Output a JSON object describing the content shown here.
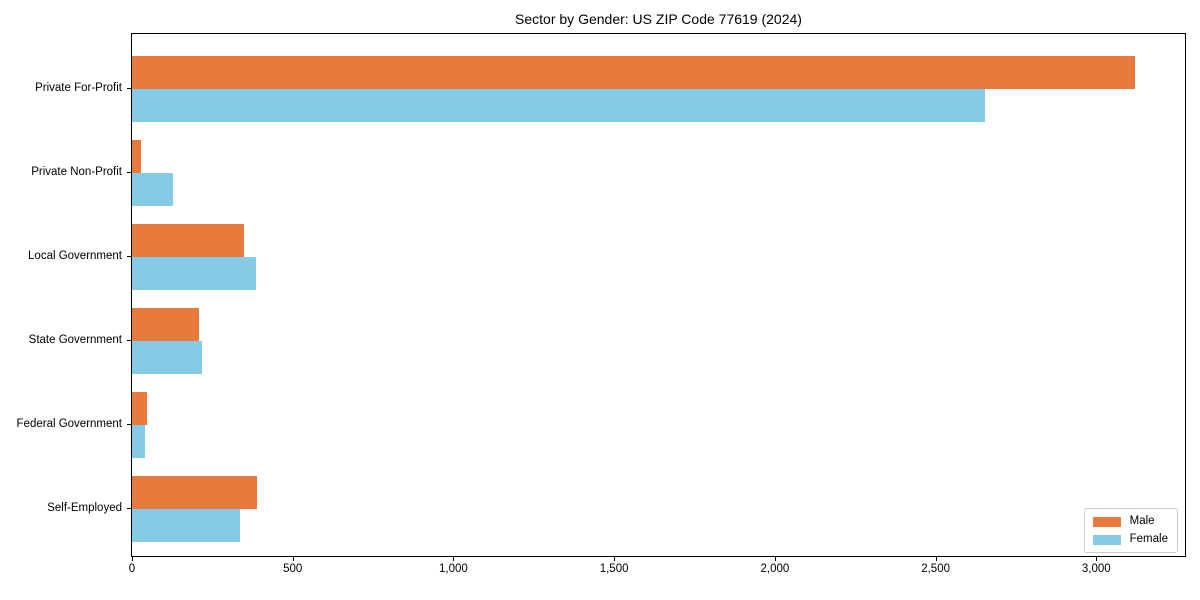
{
  "figure": {
    "title": "Sector by Gender: US ZIP Code 77619 (2024)"
  },
  "chart_data": {
    "type": "bar",
    "orientation": "horizontal",
    "title": "Sector by Gender: US ZIP Code 77619 (2024)",
    "categories": [
      "Private For-Profit",
      "Private Non-Profit",
      "Local Government",
      "State Government",
      "Federal Government",
      "Self-Employed"
    ],
    "series": [
      {
        "name": "Male",
        "color": "#e87a3d",
        "values": [
          3120,
          28,
          349,
          207,
          46,
          390
        ]
      },
      {
        "name": "Female",
        "color": "#85cbe8",
        "values": [
          2655,
          126,
          385,
          217,
          41,
          336
        ]
      }
    ],
    "xlabel": "",
    "ylabel": "",
    "xlim": [
      0,
      3276
    ],
    "xticks": [
      0,
      500,
      1000,
      1500,
      2000,
      2500,
      3000
    ],
    "xtick_labels": [
      "0",
      "500",
      "1,000",
      "1,500",
      "2,000",
      "2,500",
      "3,000"
    ],
    "grid": false,
    "legend": {
      "position": "lower right",
      "labels": [
        "Male",
        "Female"
      ]
    },
    "colors": {
      "background": "#ffffff",
      "axis": "#000000",
      "legend_border": "#cccccc"
    }
  }
}
